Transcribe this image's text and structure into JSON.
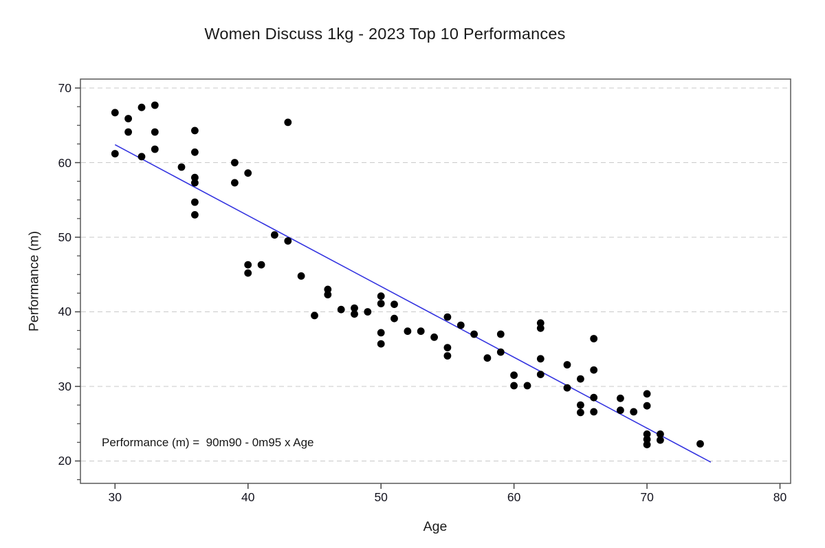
{
  "chart_data": {
    "type": "scatter",
    "title": "Women Discuss 1kg - 2023 Top 10 Performances",
    "xlabel": "Age",
    "ylabel": "Performance (m)",
    "annotation": "Performance (m) =  90m90 - 0m95 x Age",
    "xlim": [
      27.4,
      80.8
    ],
    "ylim": [
      17.0,
      71.2
    ],
    "xticks": [
      30,
      40,
      50,
      60,
      70,
      80
    ],
    "yticks": [
      20,
      30,
      40,
      50,
      60,
      70
    ],
    "y_minor_step": 2.5,
    "grid": "horizontal-dashed",
    "legend": "none",
    "point_color": "#000000",
    "line_color": "#3434e0",
    "regression": {
      "intercept": 90.9,
      "slope": -0.95,
      "x_start": 30,
      "x_end": 74.8
    },
    "points": [
      [
        30,
        66.7
      ],
      [
        30,
        61.2
      ],
      [
        31,
        65.9
      ],
      [
        31,
        64.1
      ],
      [
        32,
        67.4
      ],
      [
        32,
        60.8
      ],
      [
        33,
        67.7
      ],
      [
        33,
        64.1
      ],
      [
        33,
        61.8
      ],
      [
        35,
        59.4
      ],
      [
        36,
        64.3
      ],
      [
        36,
        61.4
      ],
      [
        36,
        58.0
      ],
      [
        36,
        57.3
      ],
      [
        36,
        54.7
      ],
      [
        36,
        53.0
      ],
      [
        39,
        60.0
      ],
      [
        39,
        57.3
      ],
      [
        40,
        58.6
      ],
      [
        40,
        46.3
      ],
      [
        40,
        45.2
      ],
      [
        41,
        46.3
      ],
      [
        42,
        50.3
      ],
      [
        43,
        65.4
      ],
      [
        43,
        49.5
      ],
      [
        44,
        44.8
      ],
      [
        45,
        39.5
      ],
      [
        46,
        43.0
      ],
      [
        46,
        42.3
      ],
      [
        47,
        40.3
      ],
      [
        48,
        40.5
      ],
      [
        48,
        39.7
      ],
      [
        49,
        40.0
      ],
      [
        50,
        42.1
      ],
      [
        50,
        41.1
      ],
      [
        50,
        37.2
      ],
      [
        50,
        35.7
      ],
      [
        51,
        41.0
      ],
      [
        51,
        39.1
      ],
      [
        52,
        37.4
      ],
      [
        53,
        37.4
      ],
      [
        54,
        36.6
      ],
      [
        55,
        39.3
      ],
      [
        55,
        35.2
      ],
      [
        55,
        34.1
      ],
      [
        56,
        38.2
      ],
      [
        57,
        37.0
      ],
      [
        58,
        33.8
      ],
      [
        59,
        37.0
      ],
      [
        59,
        34.6
      ],
      [
        60,
        31.5
      ],
      [
        60,
        30.1
      ],
      [
        61,
        30.1
      ],
      [
        62,
        38.5
      ],
      [
        62,
        37.8
      ],
      [
        62,
        33.7
      ],
      [
        62,
        31.6
      ],
      [
        64,
        32.9
      ],
      [
        64,
        29.8
      ],
      [
        65,
        31.0
      ],
      [
        65,
        27.5
      ],
      [
        65,
        26.5
      ],
      [
        66,
        36.4
      ],
      [
        66,
        32.2
      ],
      [
        66,
        28.5
      ],
      [
        66,
        26.6
      ],
      [
        68,
        28.4
      ],
      [
        68,
        26.8
      ],
      [
        69,
        26.6
      ],
      [
        70,
        29.0
      ],
      [
        70,
        27.4
      ],
      [
        70,
        23.6
      ],
      [
        70,
        22.9
      ],
      [
        70,
        22.2
      ],
      [
        71,
        23.6
      ],
      [
        71,
        22.8
      ],
      [
        74,
        22.3
      ]
    ]
  }
}
